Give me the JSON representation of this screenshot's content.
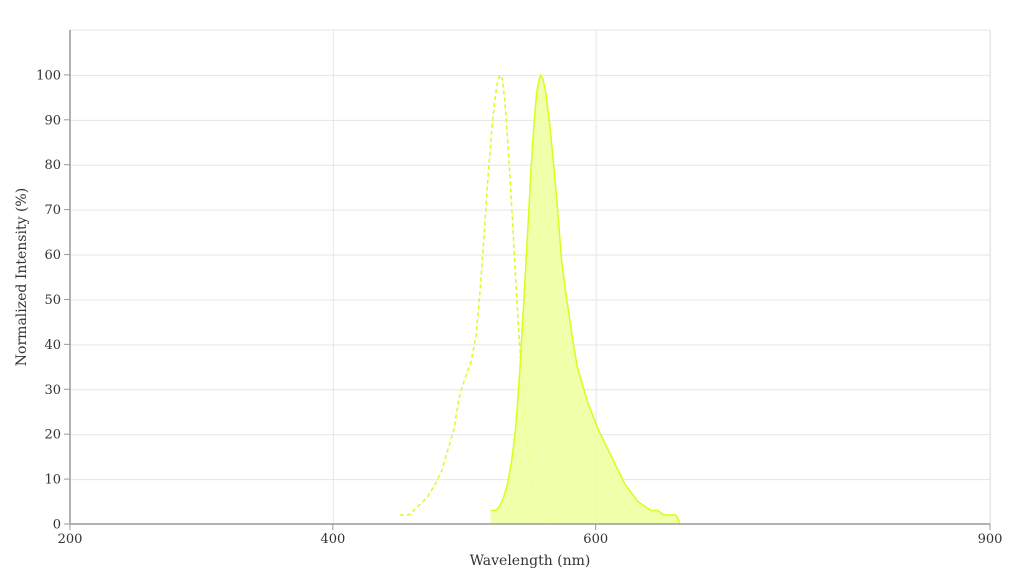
{
  "chart_data": {
    "type": "area",
    "xlabel": "Wavelength (nm)",
    "ylabel": "Normalized Intensity (%)",
    "x_axis": {
      "ticks": [
        200,
        400,
        600,
        900
      ],
      "range": [
        200,
        900
      ]
    },
    "y_axis": {
      "ticks": [
        0,
        10,
        20,
        30,
        40,
        50,
        60,
        70,
        80,
        90,
        100
      ],
      "range": [
        0,
        110
      ]
    },
    "grid": true,
    "legend": "none",
    "colors": {
      "curve": "#d4ff1a",
      "fill": "#eeffa0",
      "grid": "#e6e6e6",
      "axis": "#999999"
    },
    "series": [
      {
        "style": "dashed",
        "filled": false,
        "points": [
          [
            451,
            2
          ],
          [
            458,
            2
          ],
          [
            465,
            4
          ],
          [
            472,
            6
          ],
          [
            478,
            9
          ],
          [
            483,
            12
          ],
          [
            488,
            17
          ],
          [
            492,
            21
          ],
          [
            496,
            28
          ],
          [
            500,
            32
          ],
          [
            505,
            36
          ],
          [
            509,
            42
          ],
          [
            512,
            52
          ],
          [
            515,
            64
          ],
          [
            518,
            77
          ],
          [
            521,
            88
          ],
          [
            523,
            94
          ],
          [
            525,
            98
          ],
          [
            527,
            100
          ],
          [
            529,
            99
          ],
          [
            531,
            94
          ],
          [
            533,
            85
          ],
          [
            535,
            76
          ],
          [
            537,
            66
          ],
          [
            539,
            55
          ],
          [
            541,
            45
          ],
          [
            543,
            36
          ],
          [
            545,
            28
          ],
          [
            547,
            21
          ],
          [
            549,
            15
          ],
          [
            551,
            10
          ],
          [
            553,
            7
          ],
          [
            556,
            4
          ],
          [
            559,
            2
          ],
          [
            563,
            1
          ],
          [
            568,
            0
          ]
        ]
      },
      {
        "style": "solid",
        "filled": true,
        "points": [
          [
            520,
            3
          ],
          [
            524,
            3
          ],
          [
            527,
            4
          ],
          [
            530,
            6
          ],
          [
            533,
            9
          ],
          [
            536,
            14
          ],
          [
            539,
            21
          ],
          [
            542,
            33
          ],
          [
            545,
            48
          ],
          [
            548,
            64
          ],
          [
            551,
            80
          ],
          [
            553,
            89
          ],
          [
            555,
            96
          ],
          [
            557,
            99
          ],
          [
            558,
            100
          ],
          [
            560,
            99
          ],
          [
            562,
            96
          ],
          [
            565,
            89
          ],
          [
            568,
            80
          ],
          [
            571,
            70
          ],
          [
            574,
            59
          ],
          [
            577,
            52
          ],
          [
            580,
            46
          ],
          [
            583,
            40
          ],
          [
            586,
            35
          ],
          [
            590,
            31
          ],
          [
            594,
            27
          ],
          [
            598,
            24
          ],
          [
            602,
            21
          ],
          [
            607,
            18
          ],
          [
            612,
            15
          ],
          [
            617,
            12
          ],
          [
            622,
            9
          ],
          [
            627,
            7
          ],
          [
            632,
            5
          ],
          [
            637,
            4
          ],
          [
            642,
            3
          ],
          [
            647,
            3
          ],
          [
            652,
            2
          ],
          [
            657,
            2
          ],
          [
            661,
            2
          ],
          [
            663,
            1
          ],
          [
            664,
            0
          ]
        ]
      }
    ]
  }
}
